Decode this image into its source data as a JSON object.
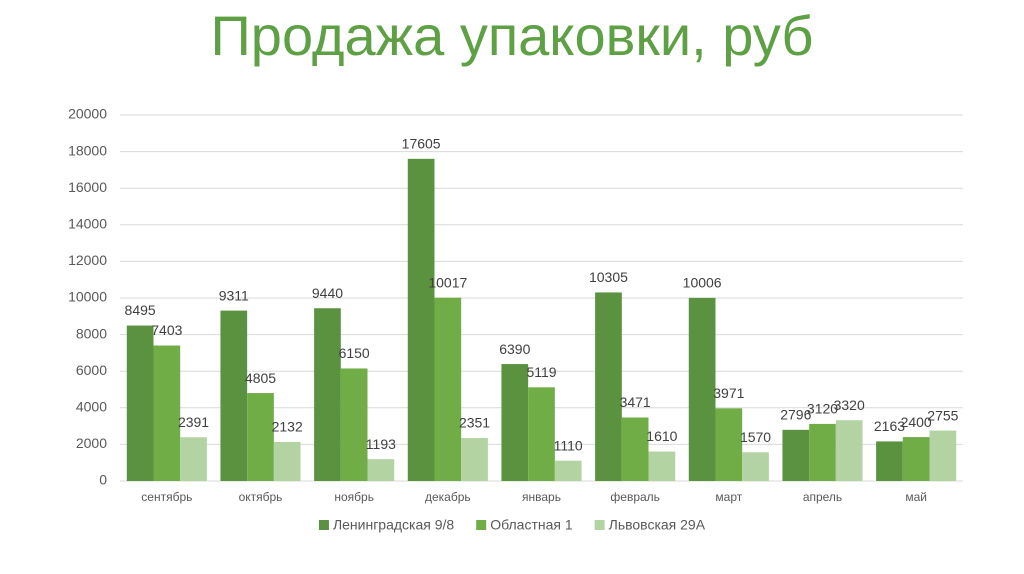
{
  "chart_data": {
    "type": "bar",
    "title": "Продажа упаковки, руб",
    "categories": [
      "сентябрь",
      "октябрь",
      "ноябрь",
      "декабрь",
      "январь",
      "февраль",
      "март",
      "апрель",
      "май"
    ],
    "series": [
      {
        "name": "Ленинградская 9/8",
        "color": "#5b9240",
        "values": [
          8495,
          9311,
          9440,
          17605,
          6390,
          10305,
          10006,
          2796,
          2163
        ]
      },
      {
        "name": "Областная 1",
        "color": "#70ad47",
        "values": [
          7403,
          4805,
          6150,
          10017,
          5119,
          3471,
          3971,
          3120,
          2400
        ]
      },
      {
        "name": "Львовская 29А",
        "color": "#b4d3a3",
        "values": [
          2391,
          2132,
          1193,
          2351,
          1110,
          1610,
          1570,
          3320,
          2755
        ]
      }
    ],
    "ylim": [
      0,
      20000
    ],
    "yticks": [
      0,
      2000,
      4000,
      6000,
      8000,
      10000,
      12000,
      14000,
      16000,
      18000,
      20000
    ],
    "grid": true,
    "legend": "bottom"
  }
}
